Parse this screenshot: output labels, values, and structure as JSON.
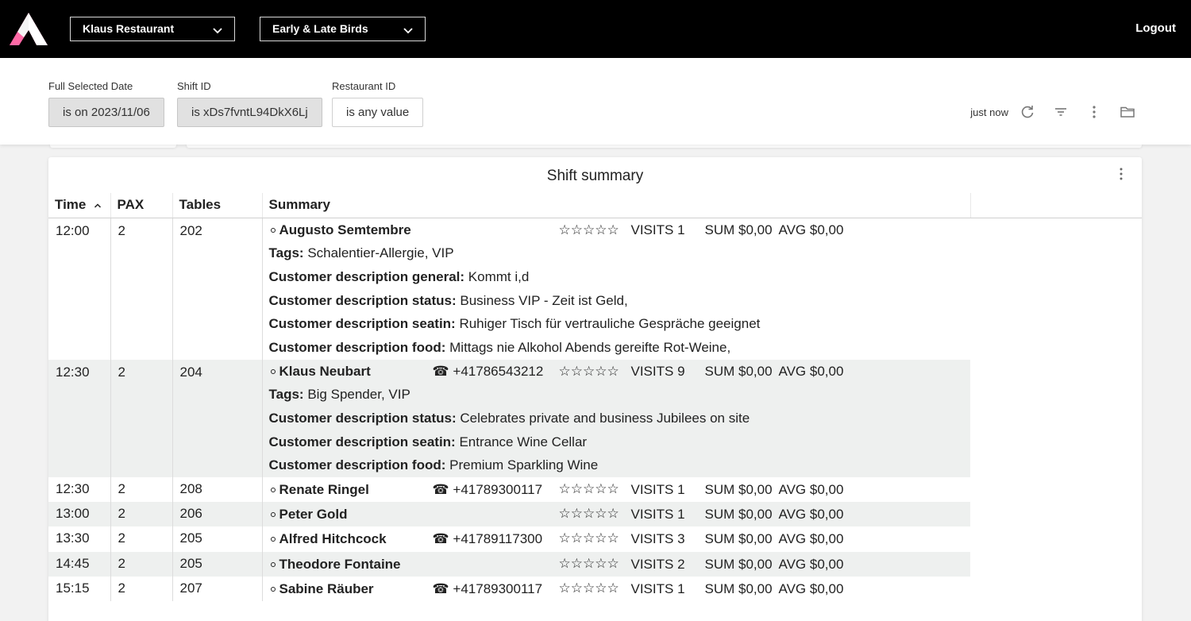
{
  "header": {
    "restaurant": "Klaus Restaurant",
    "shift_name": "Early & Late Birds",
    "logout": "Logout"
  },
  "filters": [
    {
      "label": "Full Selected Date",
      "value": "is on 2023/11/06"
    },
    {
      "label": "Shift ID",
      "value": "is xDs7fvntL94DkX6Lj"
    },
    {
      "label": "Restaurant ID",
      "value": "is any value"
    }
  ],
  "toolbar": {
    "updated": "just now"
  },
  "card": {
    "title": "Shift summary",
    "columns": {
      "time": "Time",
      "pax": "PAX",
      "tables": "Tables",
      "summary": "Summary"
    }
  },
  "rows": [
    {
      "time": "12:00",
      "pax": "2",
      "table": "202",
      "name": "Augusto Semtembre",
      "phone": "",
      "stars": "☆☆☆☆☆",
      "visits": "VISITS 1",
      "sum": "SUM $0,00",
      "avg": "AVG $0,00",
      "details": [
        {
          "label": "Tags:",
          "value": "Schalentier-Allergie, VIP"
        },
        {
          "label": "Customer description general:",
          "value": "Kommt i,d"
        },
        {
          "label": "Customer description status:",
          "value": "Business VIP - Zeit ist Geld,"
        },
        {
          "label": "Customer description seatin:",
          "value": "Ruhiger Tisch für vertrauliche Gespräche geeignet"
        },
        {
          "label": "Customer description food:",
          "value": "Mittags nie Alkohol Abends gereifte Rot-Weine,"
        }
      ]
    },
    {
      "time": "12:30",
      "pax": "2",
      "table": "204",
      "name": "Klaus Neubart",
      "phone": "☎ +41786543212",
      "stars": "☆☆☆☆☆",
      "visits": "VISITS 9",
      "sum": "SUM $0,00",
      "avg": "AVG $0,00",
      "details": [
        {
          "label": "Tags:",
          "value": "Big Spender, VIP"
        },
        {
          "label": "Customer description status:",
          "value": "Celebrates private and business Jubilees on site"
        },
        {
          "label": "Customer description seatin:",
          "value": "Entrance Wine Cellar"
        },
        {
          "label": "Customer description food:",
          "value": "Premium Sparkling Wine"
        }
      ]
    },
    {
      "time": "12:30",
      "pax": "2",
      "table": "208",
      "name": "Renate Ringel",
      "phone": "☎ +41789300117",
      "stars": "☆☆☆☆☆",
      "visits": "VISITS 1",
      "sum": "SUM $0,00",
      "avg": "AVG $0,00",
      "details": []
    },
    {
      "time": "13:00",
      "pax": "2",
      "table": "206",
      "name": "Peter Gold",
      "phone": "",
      "stars": "☆☆☆☆☆",
      "visits": "VISITS 1",
      "sum": "SUM $0,00",
      "avg": "AVG $0,00",
      "details": []
    },
    {
      "time": "13:30",
      "pax": "2",
      "table": "205",
      "name": "Alfred Hitchcock",
      "phone": "☎ +41789117300",
      "stars": "☆☆☆☆☆",
      "visits": "VISITS 3",
      "sum": "SUM $0,00",
      "avg": "AVG $0,00",
      "details": []
    },
    {
      "time": "14:45",
      "pax": "2",
      "table": "205",
      "name": "Theodore Fontaine",
      "phone": "",
      "stars": "☆☆☆☆☆",
      "visits": "VISITS 2",
      "sum": "SUM $0,00",
      "avg": "AVG $0,00",
      "details": []
    },
    {
      "time": "15:15",
      "pax": "2",
      "table": "207",
      "name": "Sabine Räuber",
      "phone": "☎ +41789300117",
      "stars": "☆☆☆☆☆",
      "visits": "VISITS 1",
      "sum": "SUM $0,00",
      "avg": "AVG $0,00",
      "details": []
    }
  ]
}
